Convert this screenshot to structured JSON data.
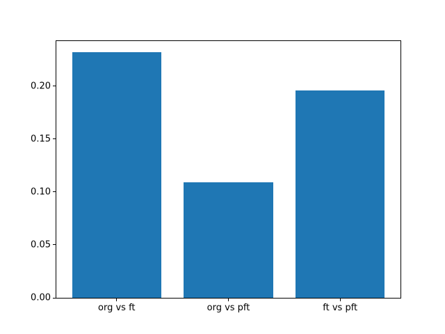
{
  "figure": {
    "background": "#ffffff"
  },
  "chart_data": {
    "type": "bar",
    "title": "",
    "xlabel": "",
    "ylabel": "",
    "categories": [
      "org vs ft",
      "org vs pft",
      "ft vs pft"
    ],
    "values": [
      0.232,
      0.109,
      0.196
    ],
    "bar_color": "#1f77b4",
    "bar_width": 0.8,
    "xlim": [
      -0.54,
      2.54
    ],
    "ylim": [
      0,
      0.2425
    ],
    "yticks": [
      0.0,
      0.05,
      0.1,
      0.15,
      0.2
    ],
    "ytick_labels": [
      "0.00",
      "0.05",
      "0.10",
      "0.15",
      "0.20"
    ],
    "grid": false,
    "legend": false,
    "axis_color": "#000000",
    "text_color": "#000000"
  }
}
